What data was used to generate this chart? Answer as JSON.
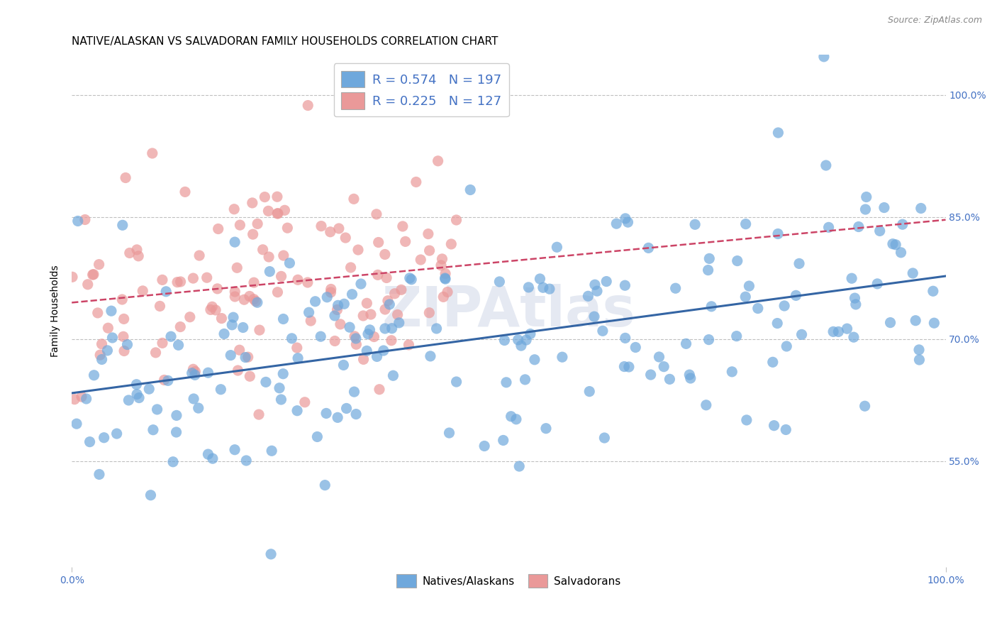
{
  "title": "NATIVE/ALASKAN VS SALVADORAN FAMILY HOUSEHOLDS CORRELATION CHART",
  "source": "Source: ZipAtlas.com",
  "ylabel": "Family Households",
  "yticks": [
    "55.0%",
    "70.0%",
    "85.0%",
    "100.0%"
  ],
  "ytick_vals": [
    0.55,
    0.7,
    0.85,
    1.0
  ],
  "xlim": [
    0.0,
    1.0
  ],
  "ylim": [
    0.42,
    1.05
  ],
  "legend_blue_r": "R = 0.574",
  "legend_blue_n": "N = 197",
  "legend_pink_r": "R = 0.225",
  "legend_pink_n": "N = 127",
  "blue_color": "#6fa8dc",
  "pink_color": "#ea9999",
  "blue_line_color": "#3465a4",
  "pink_line_color": "#cc4466",
  "watermark": "ZIPAtlas",
  "title_fontsize": 11,
  "axis_label_color": "#4472c4",
  "grid_color": "#c0c0c0",
  "blue_trend_x0": 0.0,
  "blue_trend_y0": 0.625,
  "blue_trend_x1": 1.0,
  "blue_trend_y1": 0.76,
  "pink_trend_x0": 0.0,
  "pink_trend_y0": 0.74,
  "pink_trend_x1": 1.0,
  "pink_trend_y1": 0.87
}
